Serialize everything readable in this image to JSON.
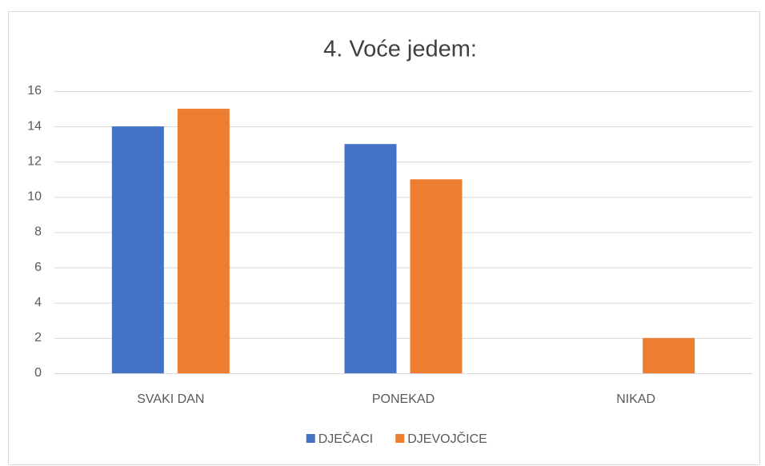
{
  "chart_data": {
    "type": "bar",
    "title": "4. Voće jedem:",
    "categories": [
      "SVAKI DAN",
      "PONEKAD",
      "NIKAD"
    ],
    "series": [
      {
        "name": "DJEČACI",
        "color": "#4472c4",
        "values": [
          14,
          13,
          0
        ]
      },
      {
        "name": "DJEVOJČICE",
        "color": "#ed7d31",
        "values": [
          15,
          11,
          2
        ]
      }
    ],
    "ylim": [
      0,
      16
    ],
    "yticks": [
      0,
      2,
      4,
      6,
      8,
      10,
      12,
      14,
      16
    ],
    "grid": true,
    "legend": "bottom"
  }
}
